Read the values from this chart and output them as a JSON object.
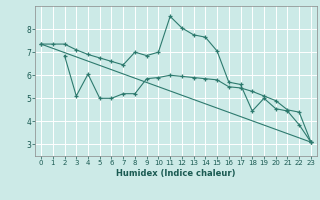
{
  "title": "",
  "xlabel": "Humidex (Indice chaleur)",
  "bg_color": "#cceae7",
  "grid_color": "#ffffff",
  "line_color": "#2d7a6e",
  "xlim": [
    -0.5,
    23.5
  ],
  "ylim": [
    2.5,
    9.0
  ],
  "yticks": [
    3,
    4,
    5,
    6,
    7,
    8
  ],
  "xticks": [
    0,
    1,
    2,
    3,
    4,
    5,
    6,
    7,
    8,
    9,
    10,
    11,
    12,
    13,
    14,
    15,
    16,
    17,
    18,
    19,
    20,
    21,
    22,
    23
  ],
  "line1_x": [
    0,
    1,
    2,
    3,
    4,
    5,
    6,
    7,
    8,
    9,
    10,
    11,
    12,
    13,
    14,
    15,
    16,
    17,
    18,
    19,
    20,
    21,
    22,
    23
  ],
  "line1_y": [
    7.35,
    7.35,
    7.35,
    7.1,
    6.9,
    6.75,
    6.6,
    6.45,
    7.0,
    6.85,
    7.0,
    8.55,
    8.05,
    7.75,
    7.65,
    7.05,
    5.7,
    5.6,
    4.45,
    5.0,
    4.55,
    4.45,
    3.85,
    3.1
  ],
  "line2_x": [
    2,
    3,
    4,
    5,
    6,
    7,
    8,
    9,
    10,
    11,
    12,
    13,
    14,
    15,
    16,
    17,
    18,
    19,
    20,
    21,
    22,
    23
  ],
  "line2_y": [
    6.85,
    5.1,
    6.05,
    5.0,
    5.0,
    5.2,
    5.2,
    5.85,
    5.9,
    6.0,
    5.95,
    5.9,
    5.85,
    5.8,
    5.5,
    5.45,
    5.3,
    5.1,
    4.9,
    4.5,
    4.4,
    3.1
  ],
  "line3_x": [
    0,
    23
  ],
  "line3_y": [
    7.35,
    3.1
  ]
}
